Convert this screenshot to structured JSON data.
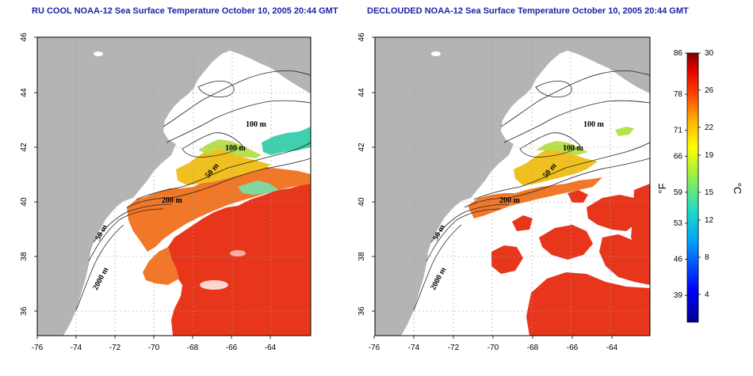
{
  "titles": {
    "left": "RU COOL NOAA-12 Sea Surface Temperature October 10, 2005 20:44 GMT",
    "right": "DECLOUDED NOAA-12 Sea Surface Temperature October 10, 2005 20:44 GMT"
  },
  "axes": {
    "lat_ticks": [
      "46",
      "44",
      "42",
      "40",
      "38",
      "36"
    ],
    "lon_ticks": [
      "-76",
      "-74",
      "-72",
      "-70",
      "-68",
      "-66",
      "-64"
    ]
  },
  "contour_labels": {
    "left": [
      "100 m",
      "100 m",
      "50 m",
      "200 m",
      "50 m",
      "2000 m"
    ],
    "right": [
      "100 m",
      "100 m",
      "50 m",
      "200 m",
      "50 m",
      "2000 m"
    ]
  },
  "colorbar": {
    "fahrenheit_ticks": [
      "86",
      "78",
      "71",
      "66",
      "59",
      "53",
      "46",
      "39"
    ],
    "celsius_ticks": [
      "30",
      "26",
      "22",
      "19",
      "15",
      "12",
      "8",
      "4"
    ],
    "unit_f": "°F",
    "unit_c": "°C"
  },
  "colors": {
    "title": "#1a23a8",
    "land": "#b4b4b4",
    "ocean_warm": "#e8361c",
    "shelf_warm": "#f07828"
  }
}
